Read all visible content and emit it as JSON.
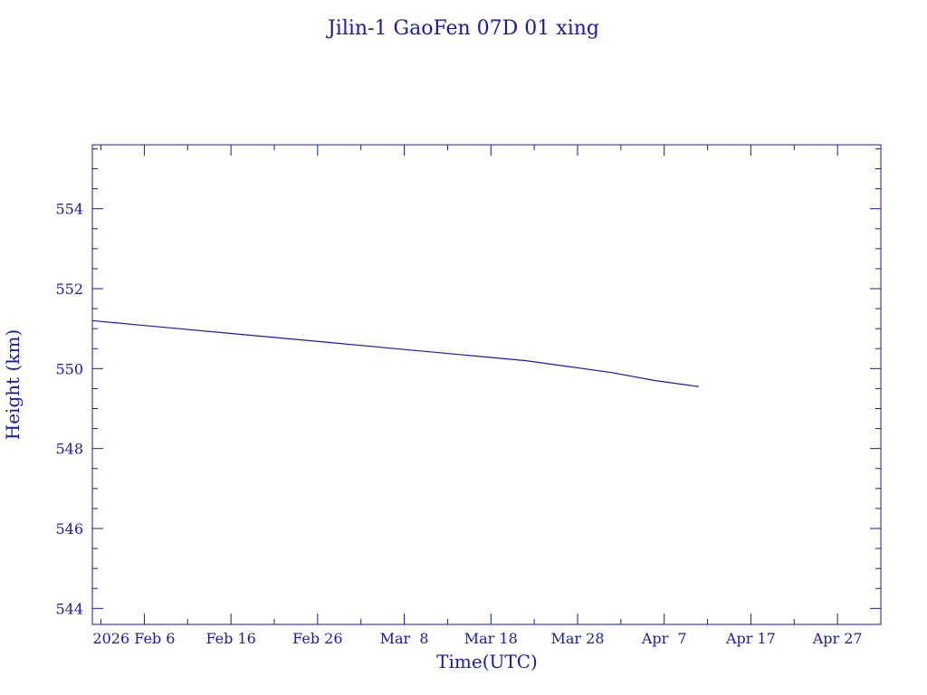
{
  "chart_data": {
    "type": "line",
    "title": "Jilin-1 GaoFen 07D 01 xing",
    "xlabel": "Time(UTC)",
    "ylabel": "Height (km)",
    "x_range": [
      "2026-01-31",
      "2026-05-02"
    ],
    "ylim": [
      543.6,
      555.6
    ],
    "x_ticks": [
      {
        "date": "2026-02-06",
        "label": "2026 Feb 6"
      },
      {
        "date": "2026-02-16",
        "label": "Feb 16"
      },
      {
        "date": "2026-02-26",
        "label": "Feb 26"
      },
      {
        "date": "2026-03-08",
        "label": "Mar  8"
      },
      {
        "date": "2026-03-18",
        "label": "Mar 18"
      },
      {
        "date": "2026-03-28",
        "label": "Mar 28"
      },
      {
        "date": "2026-04-07",
        "label": "Apr  7"
      },
      {
        "date": "2026-04-17",
        "label": "Apr 17"
      },
      {
        "date": "2026-04-27",
        "label": "Apr 27"
      }
    ],
    "y_ticks": [
      544,
      546,
      548,
      550,
      552,
      554
    ],
    "series": [
      {
        "x": [
          "2026-01-31",
          "2026-02-05",
          "2026-02-10",
          "2026-02-15",
          "2026-02-20",
          "2026-02-25",
          "2026-03-02",
          "2026-03-07",
          "2026-03-12",
          "2026-03-17",
          "2026-03-22",
          "2026-03-27",
          "2026-04-01",
          "2026-04-06",
          "2026-04-11"
        ],
        "y": [
          551.2,
          551.1,
          551.0,
          550.9,
          550.8,
          550.7,
          550.6,
          550.5,
          550.4,
          550.3,
          550.2,
          550.05,
          549.9,
          549.7,
          549.55
        ]
      }
    ]
  }
}
